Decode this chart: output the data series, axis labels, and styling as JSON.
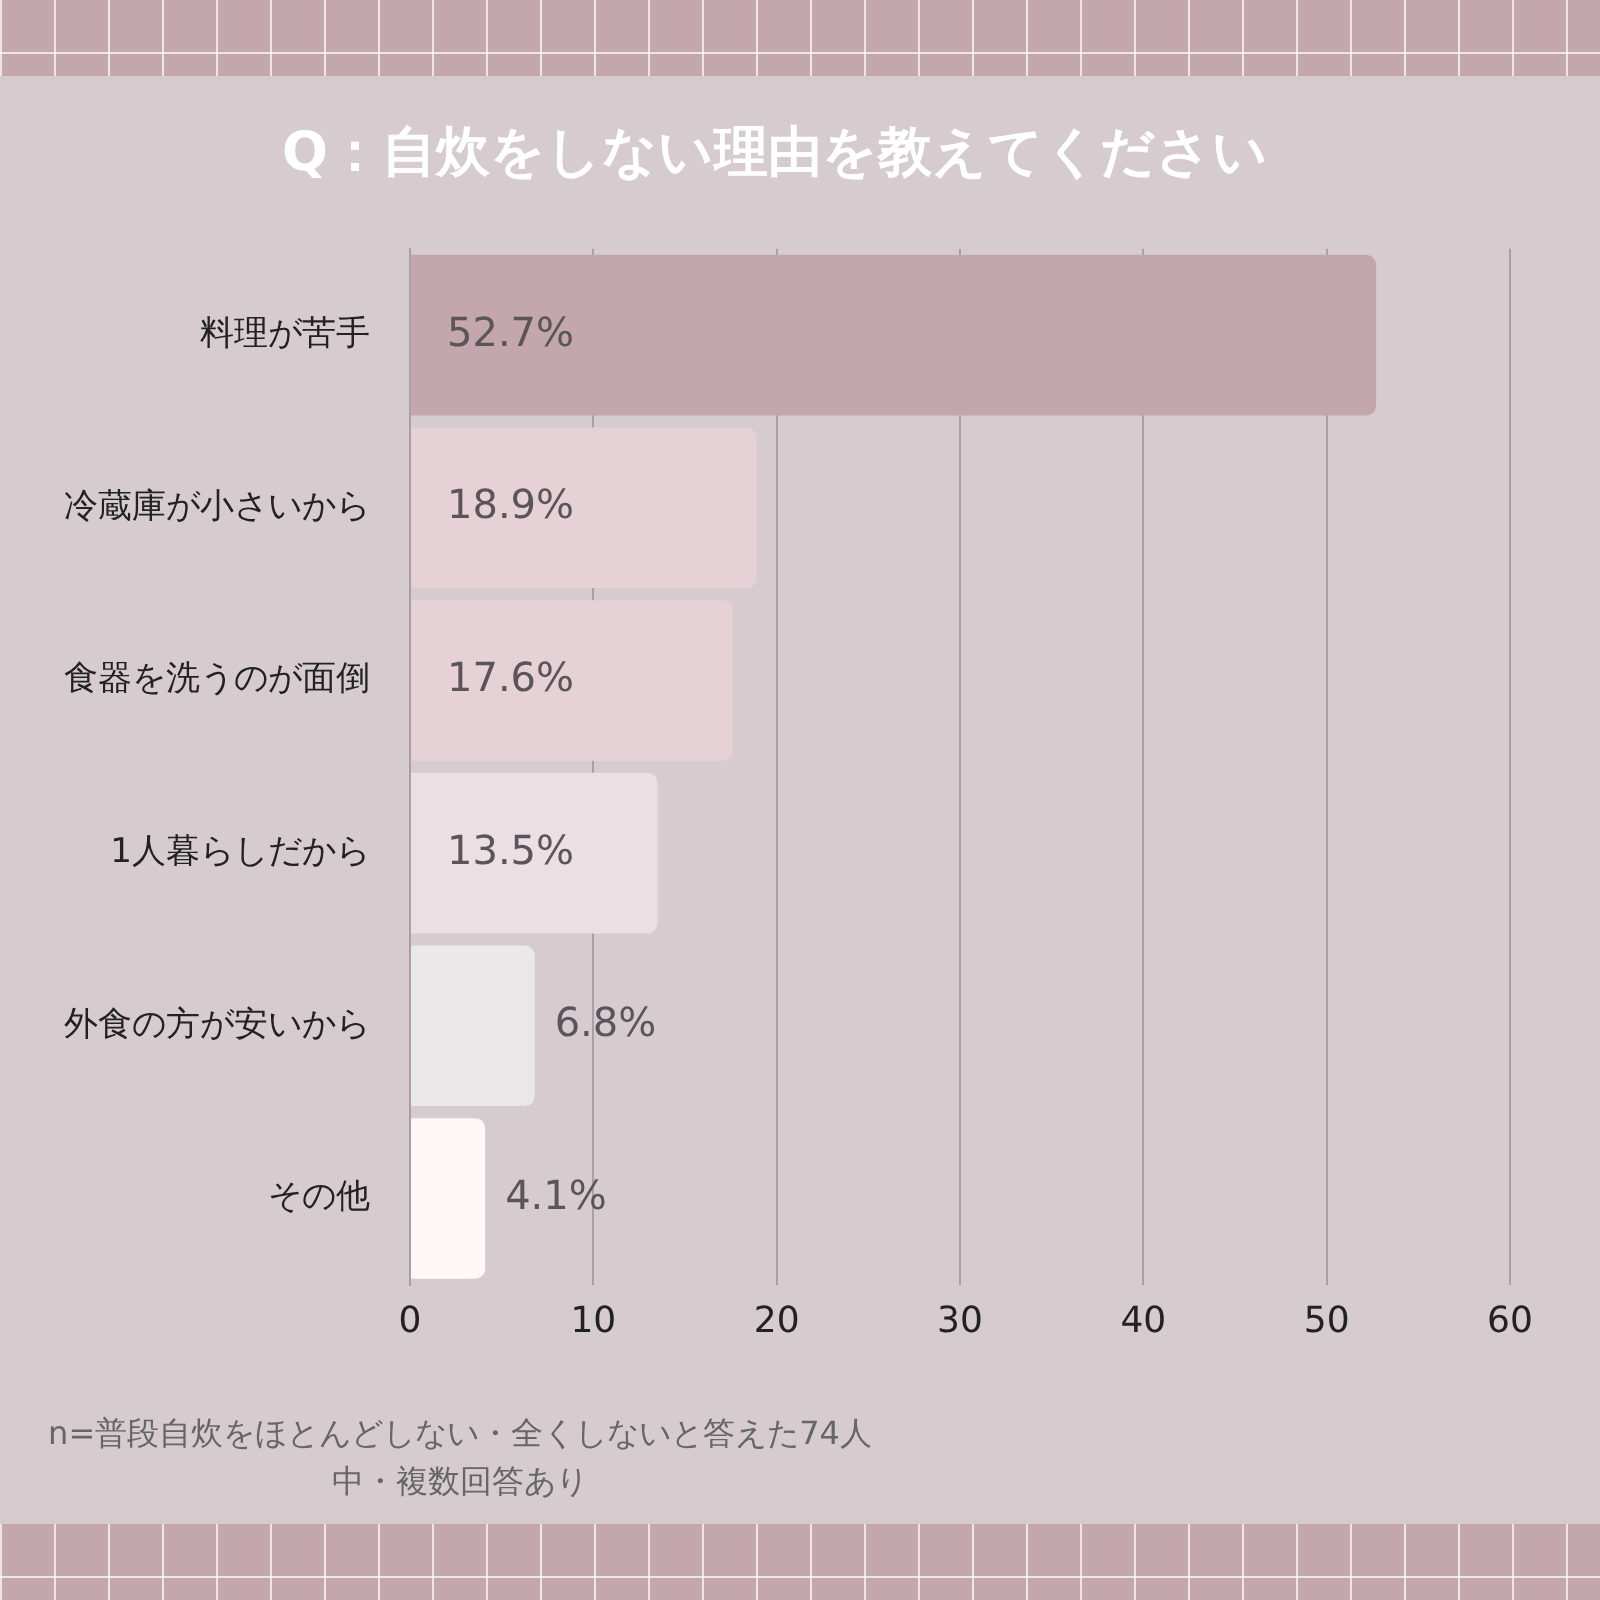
{
  "chart_data": {
    "type": "bar",
    "orientation": "horizontal",
    "title": "Q：自炊をしない理由を教えてください",
    "categories": [
      "料理が苦手",
      "冷蔵庫が小さいから",
      "食器を洗うのが面倒",
      "1人暮らしだから",
      "外食の方が安いから",
      "その他"
    ],
    "values": [
      52.7,
      18.9,
      17.6,
      13.5,
      6.8,
      4.1
    ],
    "colors": [
      "#c4a7ad",
      "#e6d1d7",
      "#e6d1d7",
      "#ecdfe3",
      "#ebe8ea",
      "#fdf7f8"
    ],
    "value_labels": [
      "52.7%",
      "18.9%",
      "17.6%",
      "13.5%",
      "6.8%",
      "4.1%"
    ],
    "xlim": [
      0,
      60
    ],
    "xticks": [
      0,
      10,
      20,
      30,
      40,
      50,
      60
    ],
    "grid": "x",
    "legend": false,
    "annotations": [
      "n=普段自炊をほとんどしない・全くしないと答えた74人中・複数回答あり"
    ]
  }
}
